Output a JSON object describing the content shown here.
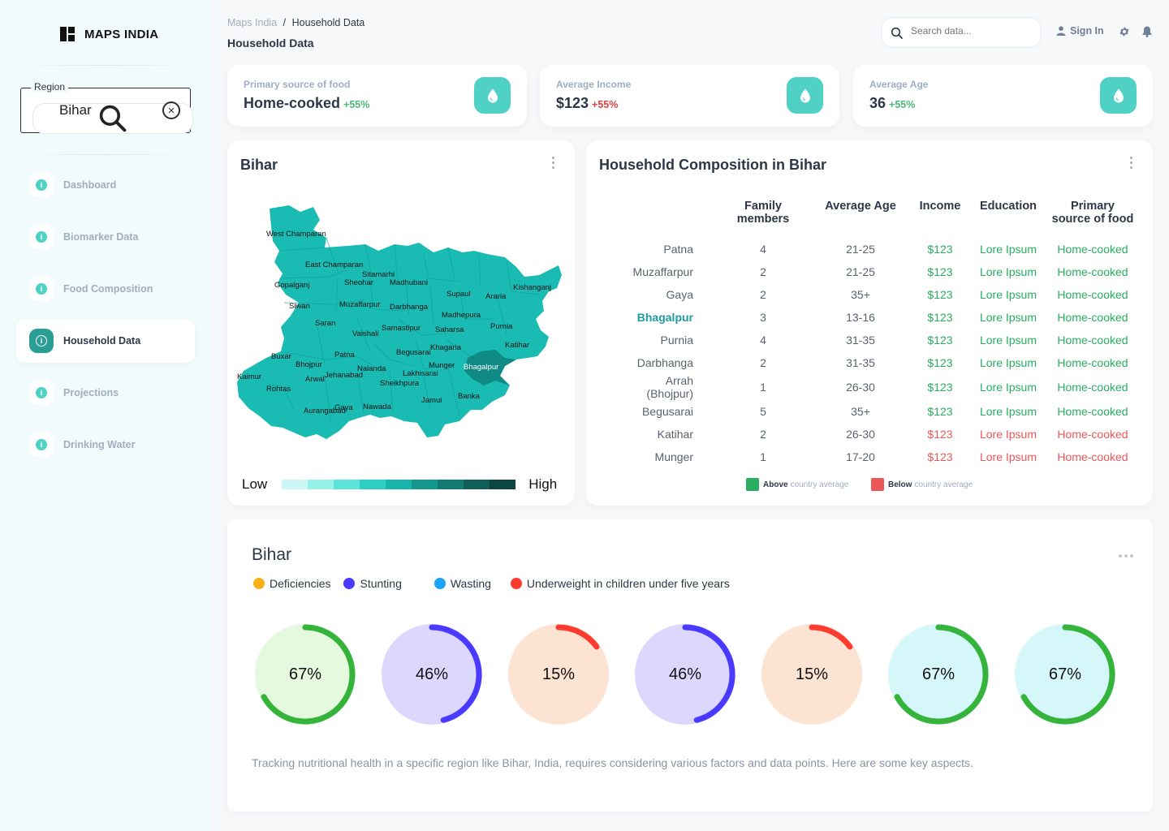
{
  "brand": {
    "name": "MAPS INDIA"
  },
  "region": {
    "label": "Region",
    "value": "Bihar"
  },
  "nav": [
    {
      "label": "Dashboard"
    },
    {
      "label": "Biomarker Data"
    },
    {
      "label": "Food Composition"
    },
    {
      "label": "Household Data",
      "active": true
    },
    {
      "label": "Projections"
    },
    {
      "label": "Drinking Water"
    }
  ],
  "header": {
    "breadcrumb_root": "Maps India",
    "breadcrumb_sep": "/",
    "breadcrumb_current": "Household Data",
    "title": "Household Data",
    "search_placeholder": "Search data...",
    "signin": "Sign In"
  },
  "stats": [
    {
      "label": "Primary source of food",
      "value": "Home-cooked",
      "delta": "+55%",
      "trend": "up"
    },
    {
      "label": "Average Income",
      "value": "$123",
      "delta": "+55%",
      "trend": "down"
    },
    {
      "label": "Average Age",
      "value": "36",
      "delta": "+55%",
      "trend": "up"
    }
  ],
  "map": {
    "title": "Bihar",
    "scale_low": "Low",
    "scale_high": "High",
    "scale_colors": [
      "#ccf7f4",
      "#96f1e8",
      "#5de4da",
      "#2ccfc4",
      "#17b5ab",
      "#13978f",
      "#117a73",
      "#0f5e58",
      "#0b4642"
    ],
    "fill": "#19bbb3",
    "highlight_fill": "#0f8a84",
    "districts": [
      "West Champaran",
      "East Champaran",
      "Sitamarhi",
      "Gopalganj",
      "Sheohar",
      "Madhubani",
      "Kishanganj",
      "Supaul",
      "Araria",
      "Siwan",
      "Muzaffarpur",
      "Darbhanga",
      "Madhepura",
      "Saran",
      "Vaishali",
      "Samastipur",
      "Saharsa",
      "Purnia",
      "Katihar",
      "Khagaria",
      "Buxar",
      "Patna",
      "Begusarai",
      "Bhojpur",
      "Nalanda",
      "Munger",
      "Bhagalpur",
      "Kaimur",
      "Arwal",
      "Jehanabad",
      "Lakhisarai",
      "Sheikhpura",
      "Rohtas",
      "Banka",
      "Jamui",
      "Aurangabad",
      "Gaya",
      "Nawada"
    ]
  },
  "composition": {
    "title": "Household Composition in Bihar",
    "columns": [
      "Family members",
      "Average Age",
      "Income",
      "Education",
      "Primary source of food"
    ],
    "rows": [
      {
        "district": "Patna",
        "members": "4",
        "age": "21-25",
        "income": "$123",
        "education": "Lore Ipsum",
        "food": "Home-cooked",
        "status": "above"
      },
      {
        "district": "Muzaffarpur",
        "members": "2",
        "age": "21-25",
        "income": "$123",
        "education": "Lore Ipsum",
        "food": "Home-cooked",
        "status": "above"
      },
      {
        "district": "Gaya",
        "members": "2",
        "age": "35+",
        "income": "$123",
        "education": "Lore Ipsum",
        "food": "Home-cooked",
        "status": "above"
      },
      {
        "district": "Bhagalpur",
        "members": "3",
        "age": "13-16",
        "income": "$123",
        "education": "Lore Ipsum",
        "food": "Home-cooked",
        "status": "above",
        "highlight": true
      },
      {
        "district": "Purnia",
        "members": "4",
        "age": "31-35",
        "income": "$123",
        "education": "Lore Ipsum",
        "food": "Home-cooked",
        "status": "above"
      },
      {
        "district": "Darbhanga",
        "members": "2",
        "age": "31-35",
        "income": "$123",
        "education": "Lore Ipsum",
        "food": "Home-cooked",
        "status": "above"
      },
      {
        "district": "Arrah (Bhojpur)",
        "members": "1",
        "age": "26-30",
        "income": "$123",
        "education": "Lore Ipsum",
        "food": "Home-cooked",
        "status": "above"
      },
      {
        "district": "Begusarai",
        "members": "5",
        "age": "35+",
        "income": "$123",
        "education": "Lore Ipsum",
        "food": "Home-cooked",
        "status": "above"
      },
      {
        "district": "Katihar",
        "members": "2",
        "age": "26-30",
        "income": "$123",
        "education": "Lore Ipsum",
        "food": "Home-cooked",
        "status": "below"
      },
      {
        "district": "Munger",
        "members": "1",
        "age": "17-20",
        "income": "$123",
        "education": "Lore Ipsum",
        "food": "Home-cooked",
        "status": "below"
      }
    ],
    "legend_above_bold": "Above",
    "legend_above_text": "country average",
    "legend_below_bold": "Below",
    "legend_below_text": "country average",
    "above_color": "#27ae60",
    "below_color": "#eb5757"
  },
  "nutrition": {
    "title": "Bihar",
    "legend": [
      {
        "label": "Deficiencies",
        "color": "#f6b019"
      },
      {
        "label": "Stunting",
        "color": "#4a3aff"
      },
      {
        "label": "Wasting",
        "color": "#1ba3f7"
      },
      {
        "label": "Underweight in children under five years",
        "color": "#ff3b30"
      }
    ],
    "rings": [
      {
        "label": "67%",
        "value": 0.67,
        "color": "#35b33a",
        "bg": "#e5f9df"
      },
      {
        "label": "46%",
        "value": 0.46,
        "color": "#4a3aff",
        "bg": "#dcd8fd"
      },
      {
        "label": "15%",
        "value": 0.15,
        "color": "#ff3b30",
        "bg": "#fde3d2"
      },
      {
        "label": "46%",
        "value": 0.46,
        "color": "#4a3aff",
        "bg": "#dcd8fd"
      },
      {
        "label": "15%",
        "value": 0.15,
        "color": "#ff3b30",
        "bg": "#fde3d2"
      },
      {
        "label": "67%",
        "value": 0.67,
        "color": "#35b33a",
        "bg": "#d5f7fa"
      },
      {
        "label": "67%",
        "value": 0.67,
        "color": "#35b33a",
        "bg": "#d5f7fa"
      }
    ],
    "description": "Tracking nutritional health in a specific region like Bihar, India, requires considering various factors and data points. Here are some key aspects."
  }
}
